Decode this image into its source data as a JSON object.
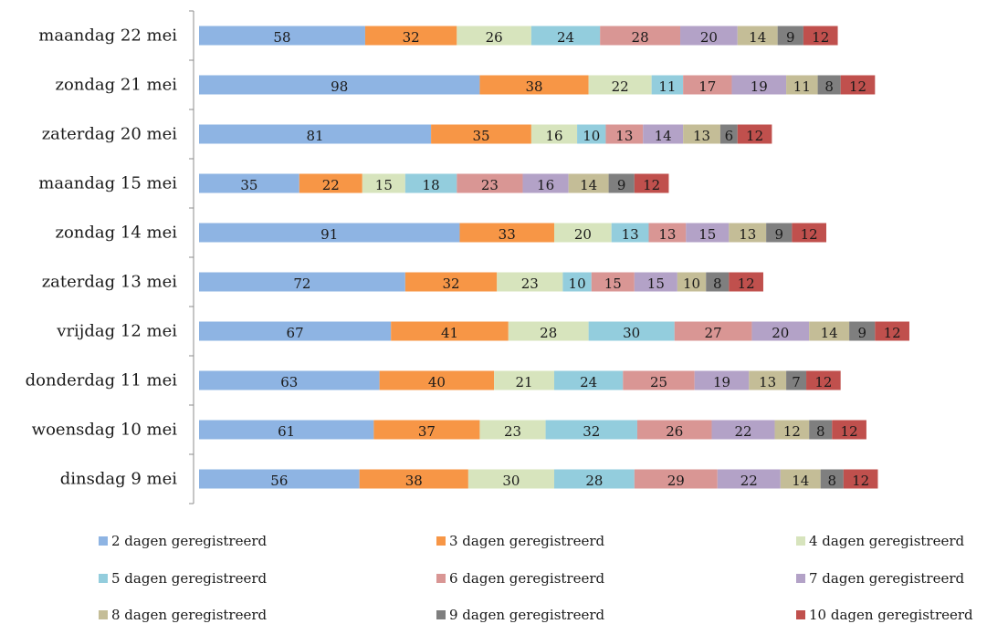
{
  "chart_data": {
    "type": "bar",
    "orientation": "horizontal",
    "stacked": true,
    "categories": [
      "maandag 22 mei",
      "zondag 21 mei",
      "zaterdag 20 mei",
      "maandag 15 mei",
      "zondag 14 mei",
      "zaterdag 13 mei",
      "vrijdag 12 mei",
      "donderdag 11 mei",
      "woensdag 10 mei",
      "dinsdag 9 mei"
    ],
    "series": [
      {
        "name": "2 dagen geregistreerd",
        "color": "#8EB4E3",
        "values": [
          58,
          98,
          81,
          35,
          91,
          72,
          67,
          63,
          61,
          56
        ]
      },
      {
        "name": "3 dagen geregistreerd",
        "color": "#F79646",
        "values": [
          32,
          38,
          35,
          22,
          33,
          32,
          41,
          40,
          37,
          38
        ]
      },
      {
        "name": "4 dagen geregistreerd",
        "color": "#D7E4BD",
        "values": [
          26,
          22,
          16,
          15,
          20,
          23,
          28,
          21,
          23,
          30
        ]
      },
      {
        "name": "5 dagen geregistreerd",
        "color": "#93CDDD",
        "values": [
          24,
          11,
          10,
          18,
          13,
          10,
          30,
          24,
          32,
          28
        ]
      },
      {
        "name": "6 dagen geregistreerd",
        "color": "#D99694",
        "values": [
          28,
          17,
          13,
          23,
          13,
          15,
          27,
          25,
          26,
          29
        ]
      },
      {
        "name": "7 dagen geregistreerd",
        "color": "#B3A2C7",
        "values": [
          20,
          19,
          14,
          16,
          15,
          15,
          20,
          19,
          22,
          22
        ]
      },
      {
        "name": "8 dagen geregistreerd",
        "color": "#C4BD97",
        "values": [
          14,
          11,
          13,
          14,
          13,
          10,
          14,
          13,
          12,
          14
        ]
      },
      {
        "name": "9 dagen geregistreerd",
        "color": "#7F7F7F",
        "values": [
          9,
          8,
          6,
          9,
          9,
          8,
          9,
          7,
          8,
          8
        ]
      },
      {
        "name": "10 dagen geregistreerd",
        "color": "#C0504D",
        "values": [
          12,
          12,
          12,
          12,
          12,
          12,
          12,
          12,
          12,
          12
        ]
      }
    ],
    "legend_position": "bottom",
    "grid": false
  }
}
